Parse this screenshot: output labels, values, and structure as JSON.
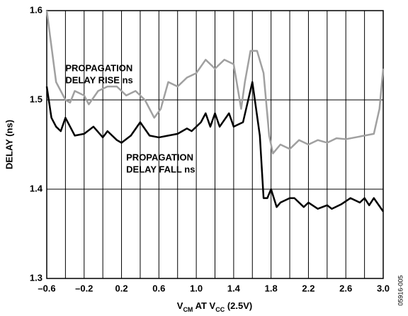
{
  "chart_data": {
    "type": "line",
    "y_label": "DELAY (ns)",
    "x_label_parts": [
      "V",
      "CM",
      " AT V",
      "CC",
      " (2.5V)"
    ],
    "figure_id": "05916-005",
    "annotations": [
      {
        "lines": [
          "PROPAGATION",
          "DELAY RISE ns"
        ],
        "x": -0.4,
        "y": 1.535
      },
      {
        "lines": [
          "PROPAGATION",
          "DELAY FALL ns"
        ],
        "x": 0.25,
        "y": 1.435
      }
    ],
    "xlim": [
      -0.6,
      3.0
    ],
    "ylim": [
      1.3,
      1.6
    ],
    "xticks": [
      {
        "value": -0.6,
        "label": "–0.6"
      },
      {
        "value": -0.2,
        "label": "–0.2"
      },
      0.2,
      0.6,
      {
        "value": 1.0,
        "label": "1.0"
      },
      1.4,
      1.8,
      2.2,
      2.6,
      {
        "value": 3.0,
        "label": "3.0"
      }
    ],
    "x_grid_lines": [
      -0.4,
      0,
      0.4,
      0.8,
      1.2,
      1.6,
      2.0,
      2.4,
      2.8
    ],
    "yticks": [
      1.3,
      1.4,
      1.5,
      1.6
    ],
    "grid": true,
    "series": [
      {
        "name": "PROPAGATION DELAY RISE ns",
        "color": "#a0a0a0",
        "x": [
          -0.6,
          -0.5,
          -0.4,
          -0.35,
          -0.3,
          -0.2,
          -0.15,
          -0.05,
          0.05,
          0.15,
          0.25,
          0.35,
          0.45,
          0.55,
          0.62,
          0.7,
          0.8,
          0.9,
          1.0,
          1.1,
          1.2,
          1.3,
          1.4,
          1.48,
          1.52,
          1.58,
          1.65,
          1.72,
          1.78,
          1.82,
          1.9,
          2.0,
          2.1,
          2.2,
          2.3,
          2.4,
          2.5,
          2.6,
          2.7,
          2.8,
          2.9,
          2.96,
          3.0
        ],
        "values": [
          1.6,
          1.52,
          1.5,
          1.497,
          1.51,
          1.505,
          1.495,
          1.51,
          1.515,
          1.515,
          1.505,
          1.51,
          1.5,
          1.48,
          1.49,
          1.52,
          1.515,
          1.525,
          1.53,
          1.545,
          1.535,
          1.545,
          1.54,
          1.49,
          1.52,
          1.555,
          1.555,
          1.53,
          1.46,
          1.44,
          1.45,
          1.445,
          1.455,
          1.45,
          1.455,
          1.452,
          1.457,
          1.456,
          1.458,
          1.46,
          1.462,
          1.49,
          1.535
        ]
      },
      {
        "name": "PROPAGATION DELAY FALL ns",
        "color": "#000000",
        "x": [
          -0.6,
          -0.55,
          -0.5,
          -0.45,
          -0.4,
          -0.35,
          -0.3,
          -0.2,
          -0.1,
          0,
          0.05,
          0.15,
          0.2,
          0.3,
          0.4,
          0.5,
          0.6,
          0.7,
          0.8,
          0.9,
          0.95,
          1.05,
          1.1,
          1.15,
          1.2,
          1.25,
          1.35,
          1.4,
          1.5,
          1.6,
          1.68,
          1.72,
          1.76,
          1.8,
          1.86,
          1.9,
          2.0,
          2.05,
          2.15,
          2.2,
          2.3,
          2.4,
          2.45,
          2.55,
          2.65,
          2.75,
          2.8,
          2.85,
          2.9,
          3.0
        ],
        "values": [
          1.515,
          1.48,
          1.47,
          1.465,
          1.48,
          1.47,
          1.46,
          1.462,
          1.47,
          1.458,
          1.465,
          1.455,
          1.452,
          1.46,
          1.475,
          1.46,
          1.458,
          1.46,
          1.462,
          1.468,
          1.465,
          1.475,
          1.485,
          1.47,
          1.485,
          1.47,
          1.485,
          1.47,
          1.475,
          1.52,
          1.46,
          1.39,
          1.39,
          1.4,
          1.38,
          1.385,
          1.39,
          1.39,
          1.38,
          1.385,
          1.378,
          1.382,
          1.378,
          1.383,
          1.39,
          1.385,
          1.39,
          1.382,
          1.39,
          1.375
        ]
      }
    ]
  }
}
